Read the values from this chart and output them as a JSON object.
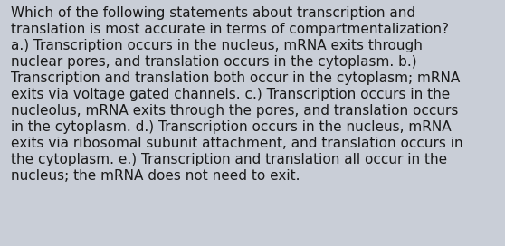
{
  "lines": [
    "Which of the following statements about transcription and",
    "translation is most accurate in terms of compartmentalization?",
    "a.) Transcription occurs in the nucleus, mRNA exits through",
    "nuclear pores, and translation occurs in the cytoplasm. b.)",
    "Transcription and translation both occur in the cytoplasm; mRNA",
    "exits via voltage gated channels. c.) Transcription occurs in the",
    "nucleolus, mRNA exits through the pores, and translation occurs",
    "in the cytoplasm. d.) Transcription occurs in the nucleus, mRNA",
    "exits via ribosomal subunit attachment, and translation occurs in",
    "the cytoplasm. e.) Transcription and translation all occur in the",
    "nucleus; the mRNA does not need to exit."
  ],
  "bg_color": "#c9ced7",
  "text_color": "#1a1a1a",
  "font_size": 11.0,
  "fig_width": 5.58,
  "fig_height": 2.72,
  "dpi": 100
}
